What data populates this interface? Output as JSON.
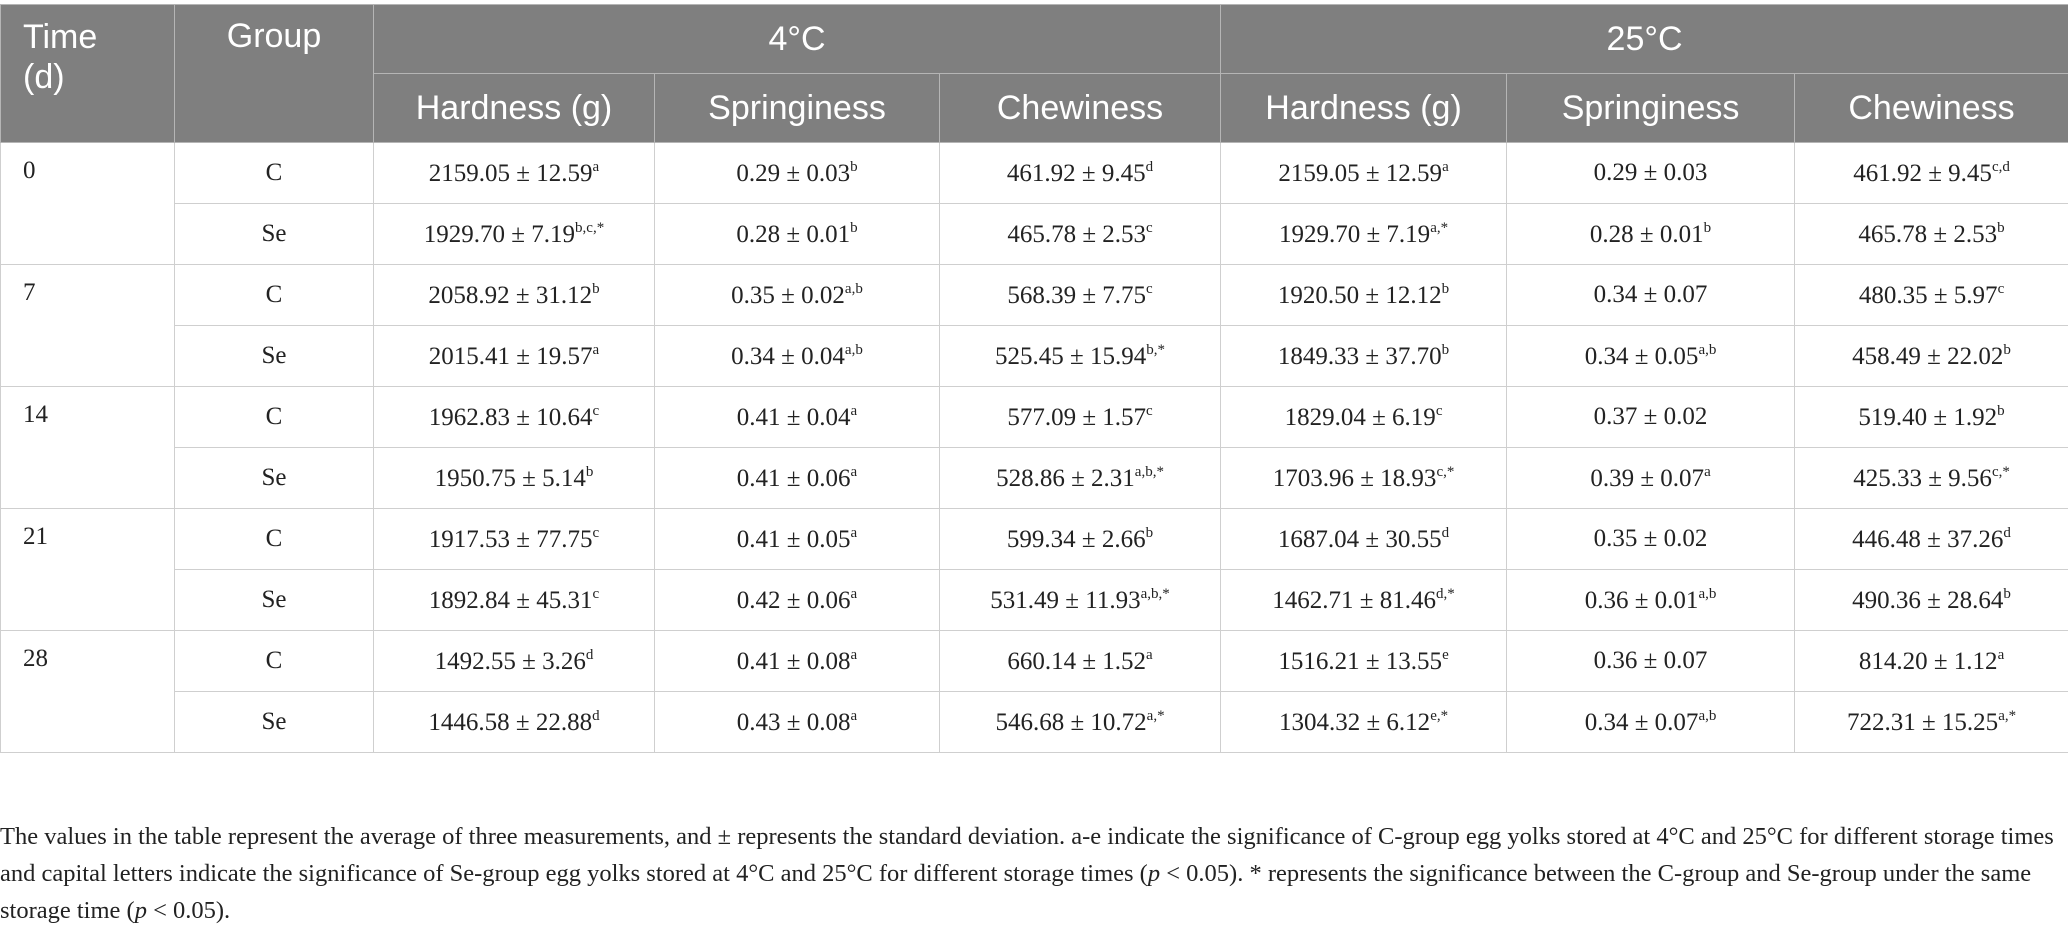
{
  "header": {
    "time": "Time (d)",
    "group": "Group",
    "temps": [
      "4°C",
      "25°C"
    ],
    "columns": [
      "Hardness (g)",
      "Springiness",
      "Chewiness",
      "Hardness (g)",
      "Springiness",
      "Chewiness"
    ]
  },
  "rows": [
    {
      "time": "0",
      "groups": [
        {
          "group": "C",
          "cells": [
            [
              "2159.05 ± 12.59",
              "a"
            ],
            [
              "0.29 ± 0.03",
              "b"
            ],
            [
              "461.92 ± 9.45",
              "d"
            ],
            [
              "2159.05 ± 12.59",
              "a"
            ],
            [
              "0.29 ± 0.03"
            ],
            [
              "461.92 ± 9.45",
              "c,d"
            ]
          ]
        },
        {
          "group": "Se",
          "cells": [
            [
              "1929.70 ± 7.19",
              "b,c,*"
            ],
            [
              "0.28 ± 0.01",
              "b"
            ],
            [
              "465.78 ± 2.53",
              "c"
            ],
            [
              "1929.70 ± 7.19",
              "a,*"
            ],
            [
              "0.28 ± 0.01",
              "b"
            ],
            [
              "465.78 ± 2.53",
              "b"
            ]
          ]
        }
      ]
    },
    {
      "time": "7",
      "groups": [
        {
          "group": "C",
          "cells": [
            [
              "2058.92 ± 31.12",
              "b"
            ],
            [
              "0.35 ± 0.02",
              "a,b"
            ],
            [
              "568.39 ± 7.75",
              "c"
            ],
            [
              "1920.50 ± 12.12",
              "b"
            ],
            [
              "0.34 ± 0.07"
            ],
            [
              "480.35 ± 5.97",
              "c"
            ]
          ]
        },
        {
          "group": "Se",
          "cells": [
            [
              "2015.41 ± 19.57",
              "a"
            ],
            [
              "0.34 ± 0.04",
              "a,b"
            ],
            [
              "525.45 ± 15.94",
              "b,*"
            ],
            [
              "1849.33 ± 37.70",
              "b"
            ],
            [
              "0.34 ± 0.05",
              "a,b"
            ],
            [
              "458.49 ± 22.02",
              "b"
            ]
          ]
        }
      ]
    },
    {
      "time": "14",
      "groups": [
        {
          "group": "C",
          "cells": [
            [
              "1962.83 ± 10.64",
              "c"
            ],
            [
              "0.41 ± 0.04",
              "a"
            ],
            [
              "577.09 ± 1.57",
              "c"
            ],
            [
              "1829.04 ± 6.19",
              "c"
            ],
            [
              "0.37 ± 0.02"
            ],
            [
              "519.40 ± 1.92",
              "b"
            ]
          ]
        },
        {
          "group": "Se",
          "cells": [
            [
              "1950.75 ± 5.14",
              "b"
            ],
            [
              "0.41 ± 0.06",
              "a"
            ],
            [
              "528.86 ± 2.31",
              "a,b,*"
            ],
            [
              "1703.96 ± 18.93",
              "c,*"
            ],
            [
              "0.39 ± 0.07",
              "a"
            ],
            [
              "425.33 ± 9.56",
              "c,*"
            ]
          ]
        }
      ]
    },
    {
      "time": "21",
      "groups": [
        {
          "group": "C",
          "cells": [
            [
              "1917.53 ± 77.75",
              "c"
            ],
            [
              "0.41 ± 0.05",
              "a"
            ],
            [
              "599.34 ± 2.66",
              "b"
            ],
            [
              "1687.04 ± 30.55",
              "d"
            ],
            [
              "0.35 ± 0.02"
            ],
            [
              "446.48 ± 37.26",
              "d"
            ]
          ]
        },
        {
          "group": "Se",
          "cells": [
            [
              "1892.84 ± 45.31",
              "c"
            ],
            [
              "0.42 ± 0.06",
              "a"
            ],
            [
              "531.49 ± 11.93",
              "a,b,*"
            ],
            [
              "1462.71 ± 81.46",
              "d,*"
            ],
            [
              "0.36 ± 0.01",
              "a,b"
            ],
            [
              "490.36 ± 28.64",
              "b"
            ]
          ]
        }
      ]
    },
    {
      "time": "28",
      "groups": [
        {
          "group": "C",
          "cells": [
            [
              "1492.55 ± 3.26",
              "d"
            ],
            [
              "0.41 ± 0.08",
              "a"
            ],
            [
              "660.14 ± 1.52",
              "a"
            ],
            [
              "1516.21 ± 13.55",
              "e"
            ],
            [
              "0.36 ± 0.07"
            ],
            [
              "814.20 ± 1.12",
              "a"
            ]
          ]
        },
        {
          "group": "Se",
          "cells": [
            [
              "1446.58 ± 22.88",
              "d"
            ],
            [
              "0.43 ± 0.08",
              "a"
            ],
            [
              "546.68 ± 10.72",
              "a,*"
            ],
            [
              "1304.32 ± 6.12",
              "e,*"
            ],
            [
              "0.34 ± 0.07",
              "a,b"
            ],
            [
              "722.31 ± 15.25",
              "a,*"
            ]
          ]
        }
      ]
    }
  ],
  "footnote": [
    "The values in the table represent the average of three measurements, and ± represents the standard deviation. a-e indicate the significance of C-group egg yolks stored at 4°C and 25°C for different storage times and capital letters indicate the significance of Se-group egg yolks stored at 4°C and 25°C for different storage times (",
    "p",
    " < 0.05). * represents the significance between the C-group and Se-group under the same storage time (",
    "p",
    " < 0.05)."
  ]
}
